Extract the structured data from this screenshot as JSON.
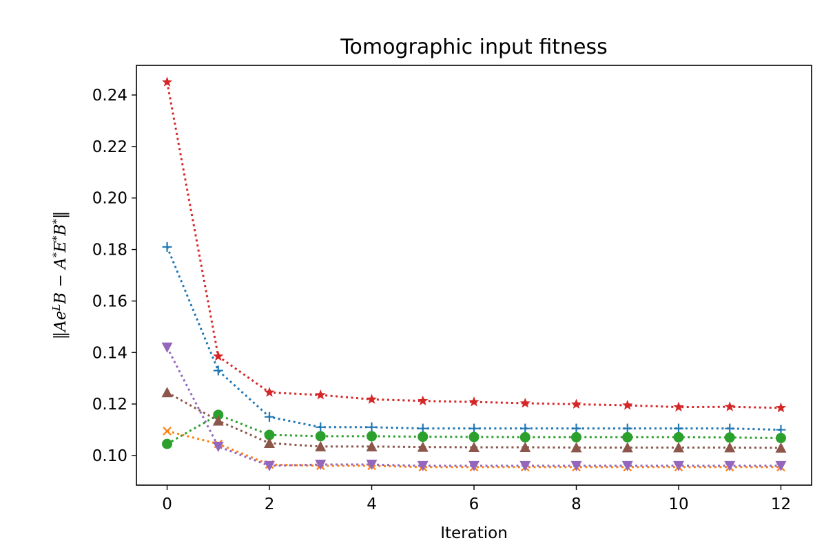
{
  "chart_data": {
    "type": "line",
    "title": "Tomographic input fitness",
    "xlabel": "Iteration",
    "ylabel": "‖Ae^L B − A^* E^* B^*‖",
    "ylabel_parts": {
      "open": "‖Ae",
      "sup1": "L",
      "mid1": "B − A",
      "sup2": "*",
      "mid2": "E",
      "sup3": "*",
      "mid3": "B",
      "sup4": "*",
      "close": "‖"
    },
    "xlim": [
      -0.6,
      12.6
    ],
    "ylim": [
      0.0885,
      0.2515
    ],
    "xticks": [
      0,
      2,
      4,
      6,
      8,
      10,
      12
    ],
    "xtick_labels": [
      "0",
      "2",
      "4",
      "6",
      "8",
      "10",
      "12"
    ],
    "yticks": [
      0.1,
      0.12,
      0.14,
      0.16,
      0.18,
      0.2,
      0.22,
      0.24
    ],
    "ytick_labels": [
      "0.10",
      "0.12",
      "0.14",
      "0.16",
      "0.18",
      "0.20",
      "0.22",
      "0.24"
    ],
    "grid": false,
    "legend": "none",
    "x": [
      0,
      1,
      2,
      3,
      4,
      5,
      6,
      7,
      8,
      9,
      10,
      11,
      12
    ],
    "series": [
      {
        "name": "series-blue",
        "color": "#1f77b4",
        "marker": "plus",
        "values": [
          0.181,
          0.133,
          0.115,
          0.111,
          0.111,
          0.1105,
          0.1105,
          0.1105,
          0.1105,
          0.1105,
          0.1105,
          0.1105,
          0.11
        ]
      },
      {
        "name": "series-orange",
        "color": "#ff7f0e",
        "marker": "x",
        "values": [
          0.1095,
          0.1045,
          0.0965,
          0.096,
          0.096,
          0.0955,
          0.0955,
          0.0955,
          0.0955,
          0.0955,
          0.0955,
          0.0955,
          0.0955
        ]
      },
      {
        "name": "series-green",
        "color": "#2ca02c",
        "marker": "circle",
        "values": [
          0.1045,
          0.1158,
          0.108,
          0.1075,
          0.1075,
          0.1073,
          0.1072,
          0.1071,
          0.1071,
          0.1071,
          0.1071,
          0.107,
          0.1068
        ]
      },
      {
        "name": "series-red",
        "color": "#d62728",
        "marker": "star",
        "values": [
          0.245,
          0.1385,
          0.1245,
          0.1235,
          0.1218,
          0.1212,
          0.1208,
          0.1203,
          0.1199,
          0.1195,
          0.1188,
          0.1189,
          0.1185
        ]
      },
      {
        "name": "series-purple",
        "color": "#9467bd",
        "marker": "triangle-down",
        "values": [
          0.142,
          0.1035,
          0.096,
          0.0965,
          0.0965,
          0.096,
          0.096,
          0.096,
          0.096,
          0.096,
          0.096,
          0.096,
          0.096
        ]
      },
      {
        "name": "series-brown",
        "color": "#8c564b",
        "marker": "triangle-up",
        "values": [
          0.1245,
          0.1135,
          0.1048,
          0.1035,
          0.1035,
          0.1033,
          0.1032,
          0.1032,
          0.1031,
          0.1031,
          0.1031,
          0.1031,
          0.103
        ]
      }
    ]
  }
}
